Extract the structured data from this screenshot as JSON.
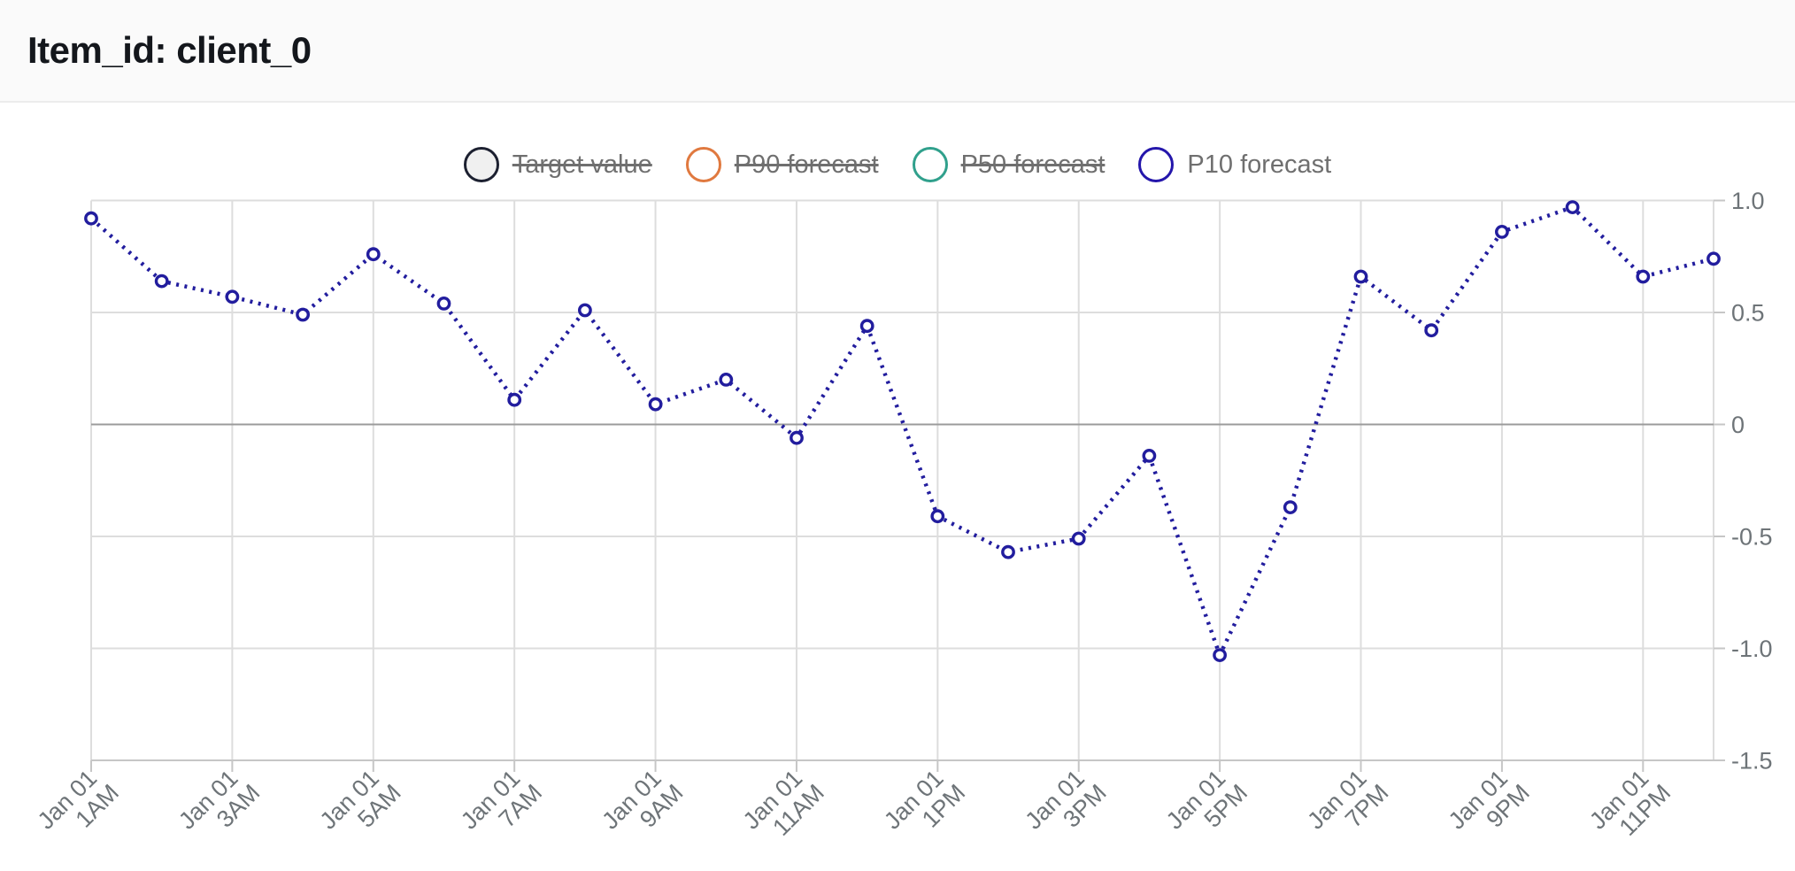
{
  "header": {
    "title": "Item_id: client_0"
  },
  "legend": {
    "items": [
      {
        "label": "Target value",
        "color": "#1c2030",
        "fill": "#f0f0f0",
        "struck": true
      },
      {
        "label": "P90 forecast",
        "color": "#e0793f",
        "fill": "#ffffff",
        "struck": true
      },
      {
        "label": "P50 forecast",
        "color": "#30a08c",
        "fill": "#ffffff",
        "struck": true
      },
      {
        "label": "P10 forecast",
        "color": "#2416ab",
        "fill": "#ffffff",
        "struck": false
      }
    ]
  },
  "chart_data": {
    "type": "line",
    "title": "Item_id: client_0",
    "series": [
      {
        "name": "P10 forecast",
        "color": "#221d9e",
        "line_style": "dotted",
        "marker": "open-circle",
        "x_date": "Jan 01",
        "x": [
          "1AM",
          "2AM",
          "3AM",
          "4AM",
          "5AM",
          "6AM",
          "7AM",
          "8AM",
          "9AM",
          "10AM",
          "11AM",
          "12PM",
          "1PM",
          "2PM",
          "3PM",
          "4PM",
          "5PM",
          "6PM",
          "7PM",
          "8PM",
          "9PM",
          "10PM",
          "11PM",
          "12AM"
        ],
        "values": [
          0.92,
          0.64,
          0.57,
          0.49,
          0.76,
          0.54,
          0.11,
          0.51,
          0.09,
          0.2,
          -0.06,
          0.44,
          -0.41,
          -0.57,
          -0.51,
          -0.14,
          -1.03,
          -0.37,
          0.66,
          0.42,
          0.86,
          0.97,
          0.66,
          0.74
        ]
      }
    ],
    "xlabel": "",
    "ylabel": "",
    "x_ticks": [
      {
        "date": "Jan 01",
        "time": "1AM"
      },
      {
        "date": "Jan 01",
        "time": "3AM"
      },
      {
        "date": "Jan 01",
        "time": "5AM"
      },
      {
        "date": "Jan 01",
        "time": "7AM"
      },
      {
        "date": "Jan 01",
        "time": "9AM"
      },
      {
        "date": "Jan 01",
        "time": "11AM"
      },
      {
        "date": "Jan 01",
        "time": "1PM"
      },
      {
        "date": "Jan 01",
        "time": "3PM"
      },
      {
        "date": "Jan 01",
        "time": "5PM"
      },
      {
        "date": "Jan 01",
        "time": "7PM"
      },
      {
        "date": "Jan 01",
        "time": "9PM"
      },
      {
        "date": "Jan 01",
        "time": "11PM"
      }
    ],
    "x_tick_point_step": 2,
    "ytick_labels": [
      "1.0",
      "0.5",
      "0",
      "-0.5",
      "-1.0",
      "-1.5"
    ],
    "ytick_values": [
      1,
      0.5,
      0,
      -0.5,
      -1,
      -1.5
    ],
    "ylim": [
      -1.5,
      1.036
    ],
    "grid": true,
    "legend_position": "top-center",
    "colors": {
      "grid": "#dddddd",
      "zero_line": "#9b9b9b",
      "axis_line": "#c6c6c6",
      "tick_label": "#6e7478",
      "series_line": "#221d9e"
    }
  }
}
